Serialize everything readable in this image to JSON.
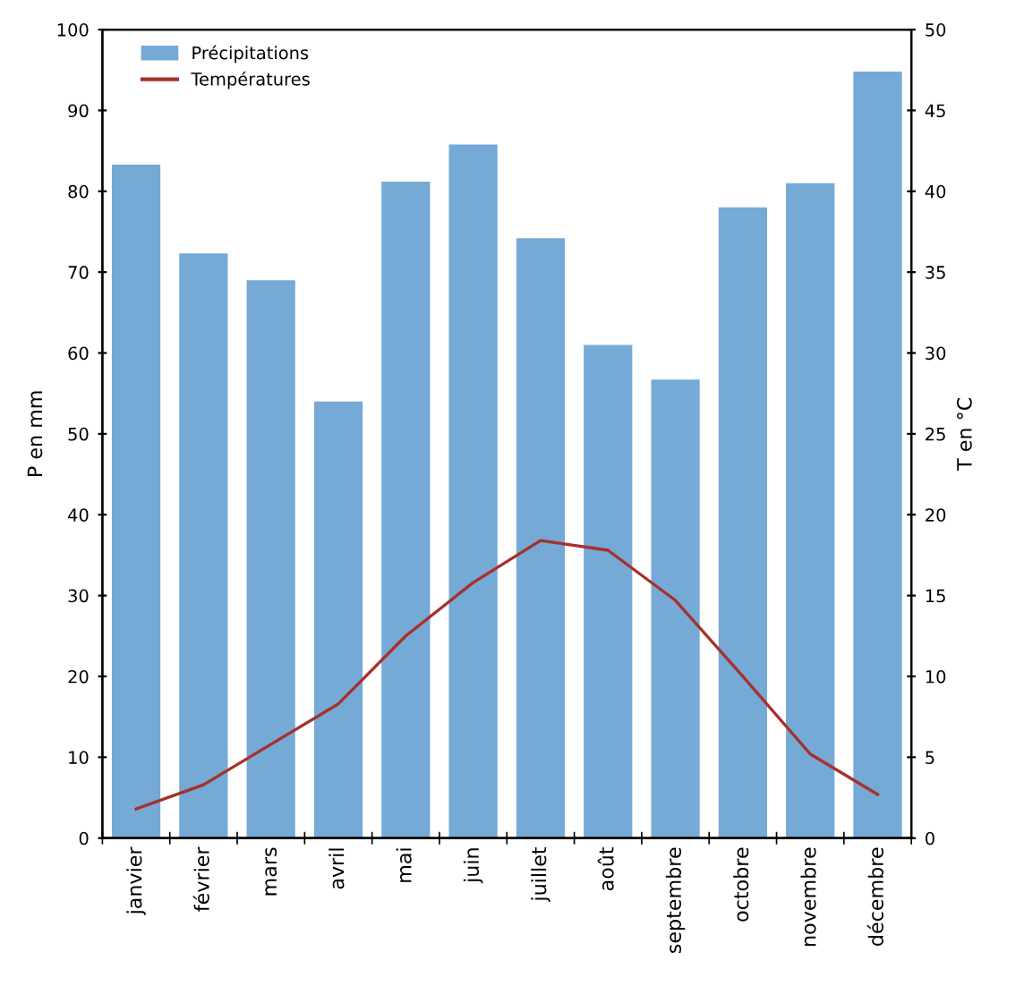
{
  "chart_data": {
    "type": "bar",
    "ylabel": "P en mm",
    "y2label": "T en °C",
    "categories": [
      "janvier",
      "février",
      "mars",
      "avril",
      "mai",
      "juin",
      "juillet",
      "août",
      "septembre",
      "octobre",
      "novembre",
      "décembre"
    ],
    "series": [
      {
        "name": "Précipitations",
        "color": "#75a9d6",
        "values": [
          83.3,
          72.3,
          69,
          54,
          81.2,
          85.8,
          74.2,
          61,
          56.7,
          78,
          81,
          94.8
        ]
      },
      {
        "name": "Températures",
        "type": "line",
        "axis": "y2",
        "color": "#a8302a",
        "values": [
          1.8,
          3.3,
          5.8,
          8.3,
          12.5,
          15.8,
          18.4,
          17.8,
          14.7,
          10,
          5.2,
          2.7
        ]
      }
    ],
    "ylim": [
      0,
      100
    ],
    "yticks": [
      0,
      10,
      20,
      30,
      40,
      50,
      60,
      70,
      80,
      90,
      100
    ],
    "y2lim": [
      0,
      50
    ],
    "y2ticks": [
      0,
      5,
      10,
      15,
      20,
      25,
      30,
      35,
      40,
      45,
      50
    ],
    "legend": "top left",
    "grid": false
  }
}
